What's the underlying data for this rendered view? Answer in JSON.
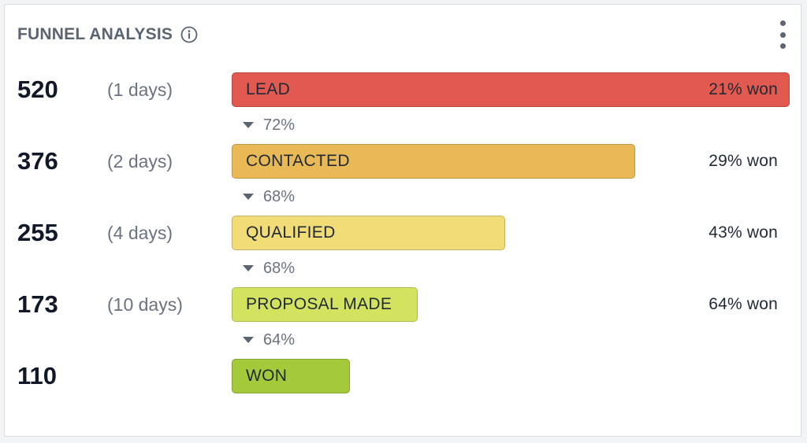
{
  "widget": {
    "title": "FUNNEL ANALYSIS",
    "info_icon": "info-circle-icon",
    "menu_icon": "vertical-ellipsis-icon"
  },
  "stages": [
    {
      "count": "520",
      "days": "(1 days)",
      "label": "LEAD",
      "won": "21% won",
      "fill": 1.0,
      "color": "#e25a4f"
    },
    {
      "count": "376",
      "days": "(2 days)",
      "label": "CONTACTED",
      "won": "29% won",
      "fill": 0.723,
      "color": "#e9b955"
    },
    {
      "count": "255",
      "days": "(4 days)",
      "label": "QUALIFIED",
      "won": "43% won",
      "fill": 0.49,
      "color": "#f2dc78"
    },
    {
      "count": "173",
      "days": "(10 days)",
      "label": "PROPOSAL MADE",
      "won": "64% won",
      "fill": 0.333,
      "color": "#d4e35f"
    },
    {
      "count": "110",
      "days": "",
      "label": "WON",
      "won": "",
      "fill": 0.212,
      "color": "#a4c93b"
    }
  ],
  "conversions": [
    "72%",
    "68%",
    "68%",
    "64%"
  ],
  "colors": {
    "accent_text": "#5b6471",
    "muted": "#6b7280",
    "card_border": "#d8dce3"
  }
}
